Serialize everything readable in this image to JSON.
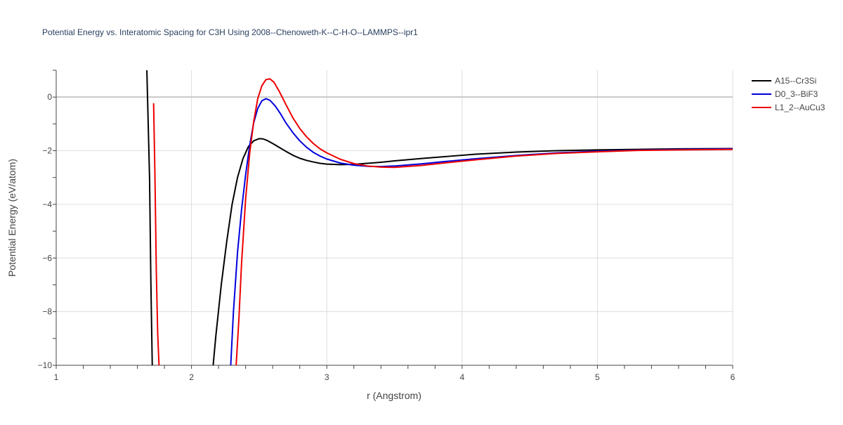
{
  "chart_data": {
    "type": "line",
    "title": "Potential Energy vs. Interatomic Spacing for C3H Using 2008--Chenoweth-K--C-H-O--LAMMPS--ipr1",
    "xlabel": "r (Angstrom)",
    "ylabel": "Potential Energy (eV/atom)",
    "xlim": [
      1,
      6
    ],
    "ylim": [
      -10,
      1
    ],
    "x_ticks": [
      1,
      2,
      3,
      4,
      5,
      6
    ],
    "x_tick_labels": [
      "1",
      "2",
      "3",
      "4",
      "5",
      "6"
    ],
    "y_ticks": [
      -10,
      -8,
      -6,
      -4,
      -2,
      0
    ],
    "y_tick_labels": [
      "−10",
      "−8",
      "−6",
      "−4",
      "−2",
      "0"
    ],
    "grid": true,
    "legend_position": "top-right",
    "series": [
      {
        "name": "A15--Cr3Si",
        "color": "#000000",
        "x": [
          1.67,
          1.69,
          1.7,
          1.71,
          2.16,
          2.18,
          2.22,
          2.26,
          2.3,
          2.34,
          2.38,
          2.42,
          2.46,
          2.5,
          2.53,
          2.56,
          2.6,
          2.65,
          2.7,
          2.75,
          2.8,
          2.85,
          2.9,
          2.95,
          3.0,
          3.1,
          3.2,
          3.3,
          3.4,
          3.5,
          3.7,
          3.9,
          4.1,
          4.4,
          4.7,
          5.0,
          5.3,
          5.6,
          6.0
        ],
        "y": [
          1.0,
          -3.0,
          -7.0,
          -10.0,
          -10.0,
          -8.9,
          -7.0,
          -5.4,
          -4.0,
          -3.0,
          -2.3,
          -1.85,
          -1.63,
          -1.55,
          -1.56,
          -1.62,
          -1.73,
          -1.88,
          -2.03,
          -2.17,
          -2.28,
          -2.36,
          -2.42,
          -2.47,
          -2.5,
          -2.52,
          -2.51,
          -2.47,
          -2.43,
          -2.38,
          -2.29,
          -2.21,
          -2.13,
          -2.05,
          -2.0,
          -1.97,
          -1.95,
          -1.93,
          -1.92
        ]
      },
      {
        "name": "D0_3--BiF3",
        "color": "#0000dd",
        "x": [
          2.29,
          2.31,
          2.34,
          2.37,
          2.4,
          2.43,
          2.46,
          2.49,
          2.52,
          2.55,
          2.58,
          2.62,
          2.66,
          2.7,
          2.75,
          2.8,
          2.85,
          2.9,
          2.95,
          3.0,
          3.1,
          3.2,
          3.3,
          3.4,
          3.5,
          3.7,
          3.9,
          4.1,
          4.4,
          4.7,
          5.0,
          5.3,
          5.6,
          6.0
        ],
        "y": [
          -10.0,
          -8.0,
          -5.8,
          -4.2,
          -2.9,
          -1.8,
          -0.95,
          -0.42,
          -0.14,
          -0.06,
          -0.12,
          -0.34,
          -0.64,
          -0.98,
          -1.33,
          -1.63,
          -1.87,
          -2.06,
          -2.2,
          -2.31,
          -2.46,
          -2.54,
          -2.58,
          -2.59,
          -2.57,
          -2.49,
          -2.39,
          -2.3,
          -2.18,
          -2.08,
          -2.02,
          -1.98,
          -1.95,
          -1.93
        ]
      },
      {
        "name": "L1_2--AuCu3",
        "color": "#ee0000",
        "x": [
          1.72,
          1.73,
          1.74,
          1.75,
          1.76,
          2.33,
          2.35,
          2.37,
          2.4,
          2.43,
          2.46,
          2.49,
          2.52,
          2.55,
          2.58,
          2.61,
          2.65,
          2.7,
          2.75,
          2.8,
          2.85,
          2.9,
          2.95,
          3.0,
          3.1,
          3.2,
          3.3,
          3.4,
          3.5,
          3.7,
          3.9,
          4.1,
          4.4,
          4.7,
          5.0,
          5.3,
          5.6,
          6.0
        ],
        "y": [
          -0.25,
          -3.0,
          -6.5,
          -8.8,
          -10.0,
          -10.0,
          -8.3,
          -6.2,
          -3.8,
          -2.1,
          -0.9,
          -0.05,
          0.42,
          0.65,
          0.68,
          0.55,
          0.2,
          -0.3,
          -0.78,
          -1.17,
          -1.48,
          -1.73,
          -1.93,
          -2.08,
          -2.32,
          -2.48,
          -2.57,
          -2.61,
          -2.62,
          -2.55,
          -2.44,
          -2.34,
          -2.2,
          -2.1,
          -2.04,
          -1.99,
          -1.97,
          -1.95
        ]
      }
    ]
  }
}
